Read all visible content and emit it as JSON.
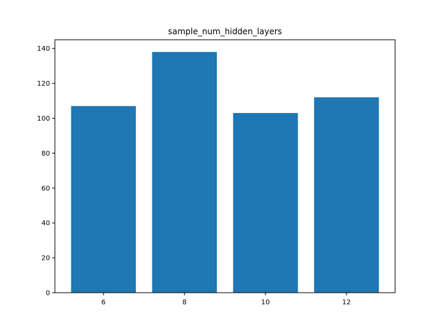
{
  "chart_data": {
    "type": "bar",
    "title": "sample_num_hidden_layers",
    "xlabel": "",
    "ylabel": "",
    "categories": [
      "6",
      "8",
      "10",
      "12"
    ],
    "values": [
      107,
      138,
      103,
      112
    ],
    "ylim": [
      0,
      145
    ],
    "yticks": [
      0,
      20,
      40,
      60,
      80,
      100,
      120,
      140
    ],
    "grid": false,
    "bar_color": "#1f77b4"
  }
}
